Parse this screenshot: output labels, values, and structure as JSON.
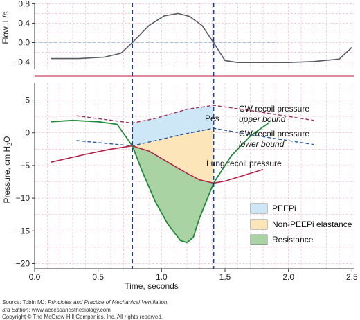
{
  "chart_data": [
    {
      "type": "line",
      "ylabel": "Flow, L/s",
      "ylim": [
        -0.55,
        0.82
      ],
      "yticks": [
        "0.8",
        "0.4",
        "0.0",
        "−0.4"
      ],
      "ytick_values": [
        0.8,
        0.4,
        0.0,
        -0.4
      ],
      "grid": true,
      "series": [
        {
          "x": [
            0.13,
            0.35,
            0.55,
            0.68,
            0.77,
            0.9,
            1.02,
            1.13,
            1.22,
            1.32,
            1.41,
            1.5,
            1.6,
            1.8,
            2.0,
            2.2,
            2.4,
            2.5
          ],
          "y": [
            -0.33,
            -0.33,
            -0.3,
            -0.22,
            0.0,
            0.35,
            0.55,
            0.6,
            0.54,
            0.35,
            0.0,
            -0.37,
            -0.41,
            -0.41,
            -0.41,
            -0.39,
            -0.34,
            -0.1
          ]
        }
      ]
    },
    {
      "type": "line",
      "xlabel": "Time, seconds",
      "ylabel": "Pressure, cm H",
      "ylabel_sub": "2",
      "ylabel_after": "O",
      "xlim": [
        0.0,
        2.52
      ],
      "ylim": [
        -20.8,
        7.6
      ],
      "xticks": [
        "0.0",
        "0.5",
        "1.0",
        "1.5",
        "2.0",
        "2.5"
      ],
      "xtick_values": [
        0.0,
        0.5,
        1.0,
        1.5,
        2.0,
        2.5
      ],
      "yticks": [
        "5",
        "0",
        "−5",
        "−10",
        "−15",
        "−20"
      ],
      "ytick_values": [
        5,
        0,
        -5,
        -10,
        -15,
        -20
      ],
      "grid": true,
      "vlines": [
        0.77,
        1.41
      ],
      "series": [
        {
          "name": "Pes",
          "x": [
            0.13,
            0.3,
            0.5,
            0.65,
            0.77,
            0.85,
            0.95,
            1.05,
            1.15,
            1.2,
            1.25,
            1.3,
            1.41,
            1.55,
            1.7,
            1.85
          ],
          "y": [
            1.7,
            1.9,
            1.7,
            1.3,
            -2.0,
            -6.0,
            -10.5,
            -14.0,
            -16.5,
            -16.8,
            -16.0,
            -13.0,
            -7.7,
            -3.5,
            -0.5,
            1.6
          ]
        },
        {
          "name": "Lung recoil pressure",
          "x": [
            0.13,
            0.4,
            0.6,
            0.77,
            0.9,
            1.05,
            1.2,
            1.3,
            1.41,
            1.5,
            1.65,
            1.8
          ],
          "y": [
            -4.5,
            -3.3,
            -2.5,
            -2.0,
            -2.8,
            -4.5,
            -6.2,
            -7.2,
            -7.7,
            -7.4,
            -6.5,
            -5.6
          ]
        },
        {
          "name": "CW recoil pressure upper bound",
          "x": [
            0.33,
            0.77,
            0.95,
            1.2,
            1.41,
            1.7,
            2.2
          ],
          "y": [
            2.6,
            1.5,
            2.2,
            3.6,
            4.2,
            3.4,
            1.9
          ]
        },
        {
          "name": "CW recoil pressure lower bound",
          "x": [
            0.33,
            0.77,
            0.95,
            1.2,
            1.41,
            1.7,
            2.2
          ],
          "y": [
            -1.2,
            -2.0,
            -1.2,
            -0.1,
            0.7,
            -0.3,
            -1.8
          ]
        }
      ],
      "annotations": {
        "pes": "Pes",
        "cw_upper_line1": "CW recoil pressure",
        "cw_upper_line2": "upper bound",
        "cw_lower_line1": "CW recoil pressure",
        "cw_lower_line2": "lower bound",
        "lung": "Lung recoil pressure"
      },
      "legend": {
        "placement": "bottom-right",
        "items": [
          {
            "label": "PEEPi",
            "color": "#cde7f7"
          },
          {
            "label": "Non-PEEPi elastance",
            "color": "#fde5ba"
          },
          {
            "label": "Resistance",
            "color": "#a9d3a3"
          }
        ]
      }
    }
  ],
  "credits": {
    "source_prefix": "Source: Tobin MJ: ",
    "source_title": "Principles and Practice of Mechanical Ventilation,",
    "source_line2": "3rd Edition",
    "source_line2_rest": ": www.accessanesthesiology.com",
    "copyright": "Copyright © The McGraw-Hill Companies, Inc. All rights reserved."
  },
  "colors": {
    "background": "#ffffff",
    "grid": "#f0b6c2",
    "divider": "#d9627a",
    "flow_line": "#555a63",
    "flow_zero": "#9cc4e6",
    "vline": "#1f3f86",
    "pes": "#1f8a3a",
    "lung": "#b3224a",
    "cw_upper": "#9a2f55",
    "cw_lower": "#2a5a9f",
    "peepi": "#cde7f7",
    "elastance": "#fde5ba",
    "resistance": "#a9d3a3"
  }
}
